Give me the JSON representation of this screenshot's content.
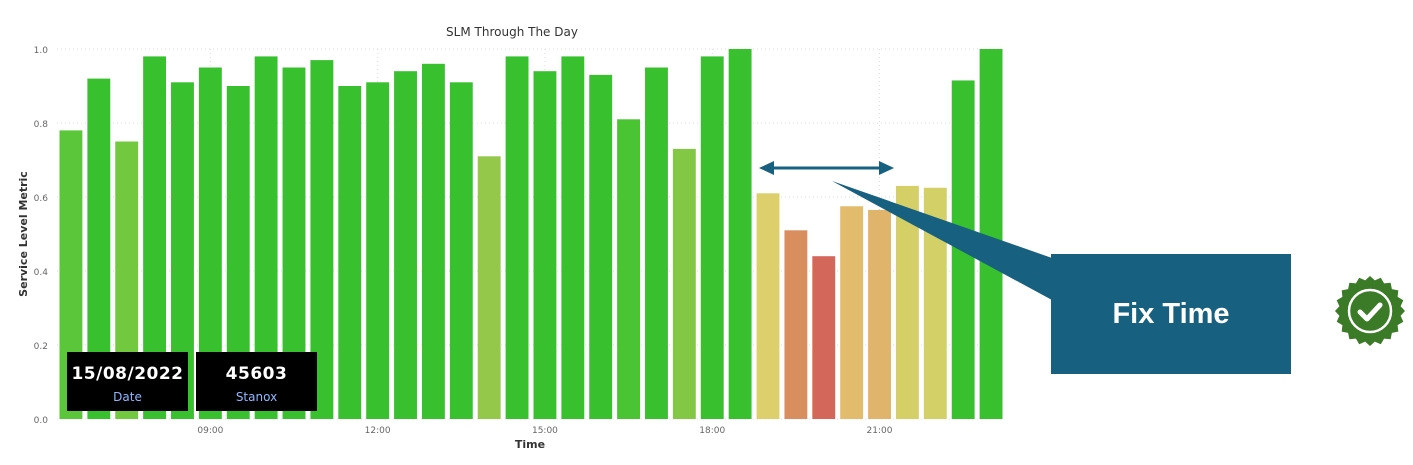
{
  "chart_data": {
    "type": "bar",
    "title": "SLM Through The Day",
    "xlabel": "Time",
    "ylabel": "Service Level Metric",
    "ylim": [
      0,
      1.0
    ],
    "yticks": [
      "0.0",
      "0.2",
      "0.4",
      "0.6",
      "0.8",
      "1.0"
    ],
    "xticks": [
      "09:00",
      "12:00",
      "15:00",
      "18:00",
      "21:00"
    ],
    "grid": true,
    "categories": [
      "06:30",
      "07:00",
      "07:30",
      "08:00",
      "08:30",
      "09:00",
      "09:30",
      "10:00",
      "10:30",
      "11:00",
      "11:30",
      "12:00",
      "12:30",
      "13:00",
      "13:30",
      "14:00",
      "14:30",
      "15:00",
      "15:30",
      "16:00",
      "16:30",
      "17:00",
      "17:30",
      "18:00",
      "18:30",
      "19:00",
      "19:30",
      "20:00",
      "20:30",
      "21:00",
      "21:30",
      "22:00",
      "22:30",
      "23:00"
    ],
    "values": [
      0.78,
      0.92,
      0.75,
      0.98,
      0.91,
      0.95,
      0.9,
      0.98,
      0.95,
      0.97,
      0.9,
      0.91,
      0.94,
      0.96,
      0.91,
      0.71,
      0.98,
      0.94,
      0.98,
      0.93,
      0.81,
      0.95,
      0.73,
      0.98,
      1.0,
      0.61,
      0.51,
      0.44,
      0.575,
      0.565,
      0.63,
      0.625,
      0.915,
      1.0
    ],
    "colors": [
      "#5bc63a",
      "#38c02f",
      "#72c83e",
      "#38c02f",
      "#38c02f",
      "#38c02f",
      "#38c02f",
      "#38c02f",
      "#38c02f",
      "#38c02f",
      "#38c02f",
      "#38c02f",
      "#38c02f",
      "#38c02f",
      "#38c02f",
      "#94c84a",
      "#38c02f",
      "#38c02f",
      "#38c02f",
      "#38c02f",
      "#4bc433",
      "#38c02f",
      "#83c845",
      "#38c02f",
      "#38c02f",
      "#dccf6c",
      "#d98e60",
      "#d3675a",
      "#e2bb6c",
      "#e0b46a",
      "#d4d067",
      "#d3d067",
      "#38c02f",
      "#38c02f"
    ]
  },
  "cards": [
    {
      "value": "15/08/2022",
      "label": "Date"
    },
    {
      "value": "45603",
      "label": "Stanox"
    }
  ],
  "callout": {
    "text": "Fix Time",
    "color": "#17607f"
  },
  "badge": {
    "icon": "verified-check-badge-icon",
    "color": "#3b7a26"
  }
}
